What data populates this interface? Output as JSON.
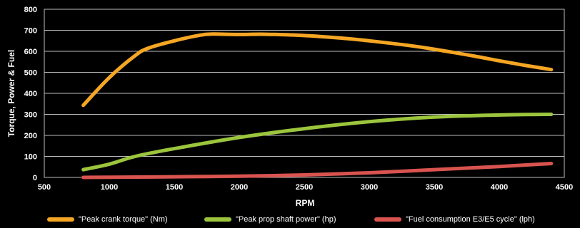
{
  "chart_data": {
    "type": "line",
    "xlabel": "RPM",
    "ylabel": "Torque, Power & Fuel",
    "xlim": [
      500,
      4500
    ],
    "ylim": [
      0,
      800
    ],
    "xticks": [
      500,
      1000,
      1500,
      2000,
      2500,
      3000,
      3500,
      4000,
      4500
    ],
    "yticks": [
      0,
      100,
      200,
      300,
      400,
      500,
      600,
      700,
      800
    ],
    "grid": true,
    "legend_position": "bottom",
    "series": [
      {
        "name": "\"Peak crank torque\" (Nm)",
        "color": "#f5a623",
        "x": [
          800,
          1000,
          1200,
          1300,
          1500,
          1700,
          1800,
          2000,
          2200,
          2500,
          2800,
          3000,
          3300,
          3500,
          3800,
          4000,
          4200,
          4400
        ],
        "y": [
          343,
          475,
          580,
          615,
          650,
          677,
          682,
          680,
          681,
          675,
          662,
          650,
          628,
          610,
          578,
          555,
          533,
          513
        ]
      },
      {
        "name": "\"Peak prop shaft power\" (hp)",
        "color": "#9bc53d",
        "x": [
          800,
          1000,
          1200,
          1500,
          2000,
          2500,
          3000,
          3500,
          4000,
          4400
        ],
        "y": [
          37,
          63,
          100,
          137,
          190,
          232,
          265,
          287,
          297,
          300
        ]
      },
      {
        "name": "\"Fuel consumption E3/E5 cycle\" (lph)",
        "color": "#d9534f",
        "x": [
          800,
          1000,
          1500,
          2000,
          2500,
          3000,
          3500,
          4000,
          4400
        ],
        "y": [
          0,
          1,
          3,
          6,
          12,
          22,
          37,
          52,
          66
        ]
      }
    ]
  }
}
